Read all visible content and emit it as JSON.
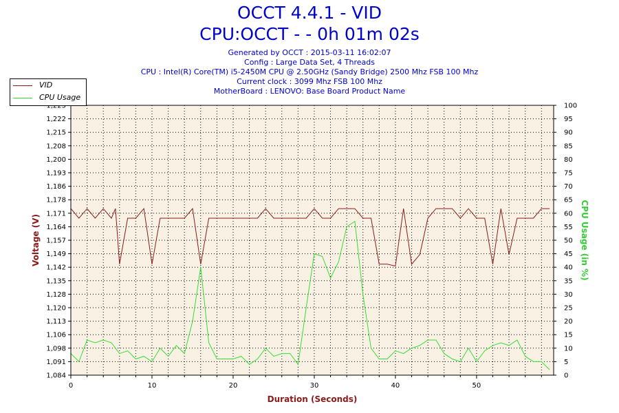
{
  "header": {
    "title": "OCCT 4.4.1 - VID",
    "subtitle": "CPU:OCCT -   - 0h 01m 02s",
    "info_lines": [
      "Generated by OCCT : 2015-03-11 16:02:07",
      "Config : Large Data Set, 4 Threads",
      "CPU : Intel(R) Core(TM) i5-2450M CPU @ 2.50GHz (Sandy Bridge) 2500 Mhz FSB 100 Mhz",
      "Current clock : 3099 Mhz FSB 100 Mhz",
      "MotherBoard : LENOVO: Base Board Product Name"
    ]
  },
  "colors": {
    "vid": "#8b1a1a",
    "cpu_usage": "#33dd33",
    "plot_bg": "#f9f2e4",
    "title": "#0000cc"
  },
  "chart_data": {
    "type": "line",
    "xlabel": "Duration (Seconds)",
    "ylabel_left": "Voltage (V)",
    "ylabel_right": "CPU Usage (in %)",
    "xlim": [
      0,
      59.5
    ],
    "x_ticks": [
      "0",
      "10",
      "20",
      "30",
      "40",
      "50"
    ],
    "x_tick_values": [
      0,
      10,
      20,
      30,
      40,
      50
    ],
    "ylim_left": [
      1.084,
      1.225
    ],
    "y_ticks_left": [
      "1,084",
      "1,091",
      "1,098",
      "1,106",
      "1,113",
      "1,120",
      "1,128",
      "1,135",
      "1,142",
      "1,149",
      "1,157",
      "1,164",
      "1,171",
      "1,178",
      "1,186",
      "1,193",
      "1,200",
      "1,208",
      "1,215",
      "1,222",
      "1,225"
    ],
    "ylim_right": [
      0,
      100
    ],
    "y_ticks_right": [
      "0",
      "5",
      "10",
      "15",
      "20",
      "25",
      "30",
      "35",
      "40",
      "45",
      "50",
      "55",
      "60",
      "65",
      "70",
      "75",
      "80",
      "85",
      "90",
      "95",
      "100"
    ],
    "grid": true,
    "legend_position": "top-left",
    "series": [
      {
        "name": "VID",
        "axis": "left",
        "points": [
          [
            0,
            1.171
          ],
          [
            1,
            1.166
          ],
          [
            2,
            1.171
          ],
          [
            3,
            1.166
          ],
          [
            4,
            1.171
          ],
          [
            5,
            1.166
          ],
          [
            5.5,
            1.171
          ],
          [
            6,
            1.142
          ],
          [
            7,
            1.166
          ],
          [
            8,
            1.166
          ],
          [
            9,
            1.171
          ],
          [
            10,
            1.142
          ],
          [
            11,
            1.166
          ],
          [
            12,
            1.166
          ],
          [
            13,
            1.166
          ],
          [
            14,
            1.166
          ],
          [
            15,
            1.171
          ],
          [
            16,
            1.142
          ],
          [
            17,
            1.166
          ],
          [
            18,
            1.166
          ],
          [
            19,
            1.166
          ],
          [
            20,
            1.166
          ],
          [
            21,
            1.166
          ],
          [
            22,
            1.166
          ],
          [
            23,
            1.166
          ],
          [
            24,
            1.171
          ],
          [
            25,
            1.166
          ],
          [
            26,
            1.166
          ],
          [
            27,
            1.166
          ],
          [
            28,
            1.166
          ],
          [
            29,
            1.166
          ],
          [
            30,
            1.171
          ],
          [
            31,
            1.166
          ],
          [
            32,
            1.166
          ],
          [
            33,
            1.171
          ],
          [
            34,
            1.171
          ],
          [
            35,
            1.171
          ],
          [
            36,
            1.166
          ],
          [
            37,
            1.166
          ],
          [
            38,
            1.142
          ],
          [
            39,
            1.142
          ],
          [
            40,
            1.141
          ],
          [
            41,
            1.171
          ],
          [
            42,
            1.142
          ],
          [
            43,
            1.147
          ],
          [
            44,
            1.166
          ],
          [
            45,
            1.171
          ],
          [
            46,
            1.171
          ],
          [
            47,
            1.171
          ],
          [
            48,
            1.166
          ],
          [
            49,
            1.171
          ],
          [
            50,
            1.166
          ],
          [
            51,
            1.166
          ],
          [
            52,
            1.142
          ],
          [
            53,
            1.171
          ],
          [
            54,
            1.147
          ],
          [
            55,
            1.166
          ],
          [
            56,
            1.166
          ],
          [
            57,
            1.166
          ],
          [
            58,
            1.171
          ],
          [
            59,
            1.171
          ]
        ]
      },
      {
        "name": "CPU Usage",
        "axis": "right",
        "points": [
          [
            0,
            8
          ],
          [
            1,
            5
          ],
          [
            2,
            13
          ],
          [
            3,
            12
          ],
          [
            4,
            13
          ],
          [
            5,
            12
          ],
          [
            6,
            8
          ],
          [
            7,
            9
          ],
          [
            8,
            6
          ],
          [
            9,
            7
          ],
          [
            10,
            5
          ],
          [
            11,
            10
          ],
          [
            12,
            7
          ],
          [
            13,
            11
          ],
          [
            14,
            8
          ],
          [
            15,
            20
          ],
          [
            16,
            40
          ],
          [
            17,
            12
          ],
          [
            18,
            6
          ],
          [
            19,
            6
          ],
          [
            20,
            6
          ],
          [
            21,
            7
          ],
          [
            22,
            4
          ],
          [
            23,
            6
          ],
          [
            24,
            10
          ],
          [
            25,
            7
          ],
          [
            26,
            8
          ],
          [
            27,
            8
          ],
          [
            28,
            4
          ],
          [
            29,
            25
          ],
          [
            30,
            45
          ],
          [
            31,
            44
          ],
          [
            32,
            36
          ],
          [
            33,
            42
          ],
          [
            34,
            55
          ],
          [
            35,
            57
          ],
          [
            36,
            30
          ],
          [
            37,
            10
          ],
          [
            38,
            6
          ],
          [
            39,
            6
          ],
          [
            40,
            9
          ],
          [
            41,
            8
          ],
          [
            42,
            10
          ],
          [
            43,
            11
          ],
          [
            44,
            13
          ],
          [
            45,
            13
          ],
          [
            46,
            8
          ],
          [
            47,
            6
          ],
          [
            48,
            5
          ],
          [
            49,
            10
          ],
          [
            50,
            5
          ],
          [
            51,
            9
          ],
          [
            52,
            11
          ],
          [
            53,
            12
          ],
          [
            54,
            11
          ],
          [
            55,
            13
          ],
          [
            56,
            7
          ],
          [
            57,
            5
          ],
          [
            58,
            5
          ],
          [
            59,
            2
          ]
        ]
      }
    ]
  }
}
